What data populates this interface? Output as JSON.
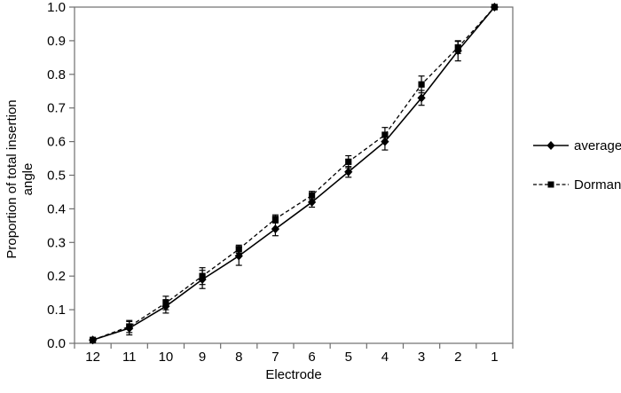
{
  "chart_data": {
    "type": "line",
    "xlabel": "Electrode",
    "ylabel": "Proportion of total insertion angle",
    "ylabel_lines": [
      "Proportion of total insertion",
      "angle"
    ],
    "categories": [
      "12",
      "11",
      "10",
      "9",
      "8",
      "7",
      "6",
      "5",
      "4",
      "3",
      "2",
      "1"
    ],
    "x_axis_note": "electrode numbers run 12 (left) to 1 (right)",
    "ylim": [
      0,
      1
    ],
    "y_tick_labels": [
      "0.0",
      "0.1",
      "0.2",
      "0.3",
      "0.4",
      "0.5",
      "0.6",
      "0.7",
      "0.8",
      "0.9",
      "1.0"
    ],
    "grid": false,
    "legend_position": "right-outside",
    "axis_color": "#6f6f6f",
    "series_color": "#000000",
    "series": [
      {
        "name": "average",
        "line": "solid",
        "marker": "diamond",
        "values": [
          0.01,
          0.045,
          0.11,
          0.19,
          0.26,
          0.34,
          0.42,
          0.51,
          0.6,
          0.73,
          0.87,
          1.0
        ],
        "errors": [
          0.005,
          0.02,
          0.02,
          0.027,
          0.028,
          0.02,
          0.015,
          0.016,
          0.025,
          0.022,
          0.03,
          0
        ]
      },
      {
        "name": "Dorman",
        "line": "dashed",
        "marker": "square",
        "values": [
          0.01,
          0.05,
          0.12,
          0.2,
          0.28,
          0.37,
          0.44,
          0.54,
          0.62,
          0.77,
          0.88,
          1.0
        ],
        "errors": [
          0.005,
          0.018,
          0.02,
          0.025,
          0.012,
          0.012,
          0.012,
          0.018,
          0.022,
          0.025,
          0.018,
          0
        ]
      }
    ]
  }
}
